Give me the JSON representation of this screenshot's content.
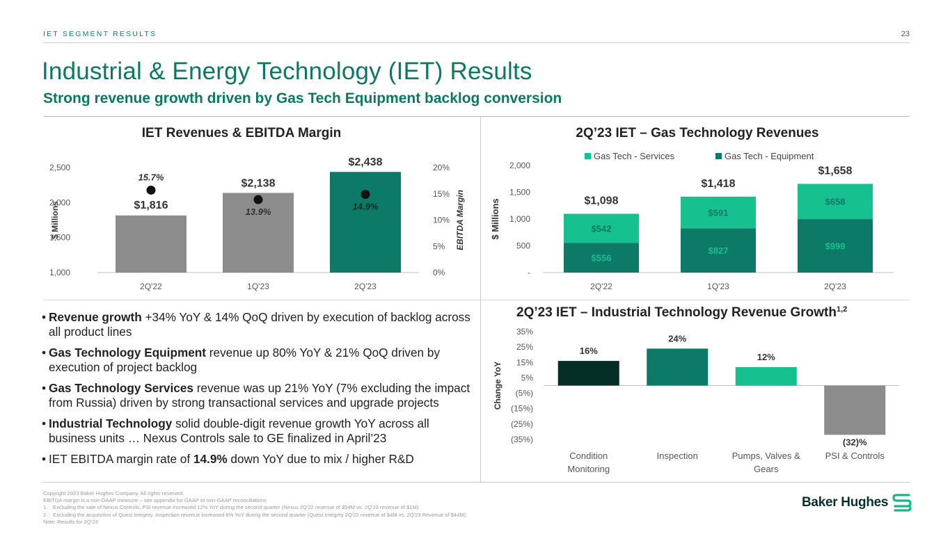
{
  "header": {
    "section_label": "IET SEGMENT RESULTS",
    "page_number": "23",
    "title": "Industrial & Energy Technology (IET) Results",
    "subtitle": "Strong revenue growth driven by Gas Tech Equipment backlog conversion"
  },
  "chart_data": [
    {
      "id": "iet-revenues",
      "type": "bar",
      "title": "IET Revenues & EBITDA Margin",
      "ylabel": "$ Millions",
      "y2label": "EBITDA Margin",
      "categories": [
        "2Q'22",
        "1Q'23",
        "2Q'23"
      ],
      "values": [
        1816,
        2138,
        2438
      ],
      "value_labels": [
        "$1,816",
        "$2,138",
        "$2,438"
      ],
      "bar_colors": [
        "#8c8c8c",
        "#8c8c8c",
        "#0c7a67"
      ],
      "ylim": [
        1000,
        2500
      ],
      "yticks": [
        1000,
        1500,
        2000,
        2500
      ],
      "ytick_labels": [
        "1,000",
        "1,500",
        "2,000",
        "2,500"
      ],
      "y2lim": [
        0,
        20
      ],
      "y2ticks": [
        0,
        5,
        10,
        15,
        20
      ],
      "y2tick_labels": [
        "0%",
        "5%",
        "10%",
        "15%",
        "20%"
      ],
      "margin_series": {
        "name": "EBITDA Margin",
        "values": [
          15.7,
          13.9,
          14.9
        ],
        "labels": [
          "15.7%",
          "13.9%",
          "14.9%"
        ]
      }
    },
    {
      "id": "gas-tech-revenues",
      "type": "bar",
      "stacked": true,
      "title": "2Q’23 IET – Gas Technology Revenues",
      "ylabel": "$ Millions",
      "categories": [
        "2Q'22",
        "1Q'23",
        "2Q'23"
      ],
      "series": [
        {
          "name": "Gas Tech - Equipment",
          "color": "#0c7a67",
          "values": [
            556,
            827,
            999
          ],
          "labels": [
            "$556",
            "$827",
            "$999"
          ]
        },
        {
          "name": "Gas Tech - Services",
          "color": "#17c08f",
          "values": [
            542,
            591,
            658
          ],
          "labels": [
            "$542",
            "$591",
            "$658"
          ]
        }
      ],
      "legend": [
        "Gas Tech - Services",
        "Gas Tech - Equipment"
      ],
      "totals": [
        "$1,098",
        "$1,418",
        "$1,658"
      ],
      "ylim": [
        0,
        2000
      ],
      "yticks": [
        0,
        500,
        1000,
        1500,
        2000
      ],
      "ytick_labels": [
        "-",
        "500",
        "1,000",
        "1,500",
        "2,000"
      ]
    },
    {
      "id": "industrial-tech-growth",
      "type": "bar",
      "title": "2Q’23 IET – Industrial Technology Revenue Growth",
      "title_superscript": "1,2",
      "ylabel": "Change YoY",
      "categories": [
        [
          "Condition",
          "Monitoring"
        ],
        [
          "Inspection"
        ],
        [
          "Pumps, Valves &",
          "Gears"
        ],
        [
          "PSI & Controls"
        ]
      ],
      "values": [
        16,
        24,
        12,
        -32
      ],
      "value_labels": [
        "16%",
        "24%",
        "12%",
        "(32)%"
      ],
      "bar_colors": [
        "#052e27",
        "#0c7a67",
        "#17c08f",
        "#8c8c8c"
      ],
      "ylim": [
        -35,
        35
      ],
      "yticks": [
        35,
        25,
        15,
        5,
        -5,
        -15,
        -25,
        -35
      ],
      "ytick_labels": [
        "35%",
        "25%",
        "15%",
        "5%",
        "(5%)",
        "(15%)",
        "(25%)",
        "(35%)"
      ]
    }
  ],
  "bullets": [
    {
      "bold": "Revenue growth",
      "text": " +34% YoY & 14% QoQ driven by execution of backlog across all product lines"
    },
    {
      "bold": "Gas Technology Equipment",
      "text": " revenue up 80% YoY & 21% QoQ driven by execution of project backlog"
    },
    {
      "bold": "Gas Technology Services",
      "text": " revenue was up 21% YoY (7% excluding the impact from Russia) driven by strong transactional services and upgrade projects"
    },
    {
      "bold": "Industrial Technology",
      "text": " solid double-digit revenue growth YoY across all business units … Nexus Controls sale to GE finalized in April’23"
    },
    {
      "pre": "IET EBITDA margin rate of ",
      "bold": "14.9%",
      "text": " down YoY due to mix / higher R&D"
    }
  ],
  "bullet_marker": "•",
  "footer": {
    "copyright": "Copyright 2023 Baker Hughes Company. All rights reserved.",
    "ebitda_note": "EBITDA margin is a non-GAAP measure – see appendix for GAAP to non-GAAP reconciliations",
    "notes": [
      {
        "num": "1.",
        "text": "Excluding the sale of Nexus Controls, PSI revenue increased 12% YoY during the second quarter (Nexus 2Q'22 revenue of $54M vs. 2Q'23 revenue of $1M)."
      },
      {
        "num": "2.",
        "text": "Excluding the acquisition of Quest Integrity, Inspection revenue increased 8% YoY during the second quarter (Quest Integrity 2Q'22 revenue of $4M vs. 2Q'23 Revenue of $44M)."
      }
    ],
    "note_results": "Note: Results for 2Q'23"
  },
  "logo": {
    "text": "Baker Hughes",
    "icon": "baker-hughes-s-mark-icon"
  }
}
